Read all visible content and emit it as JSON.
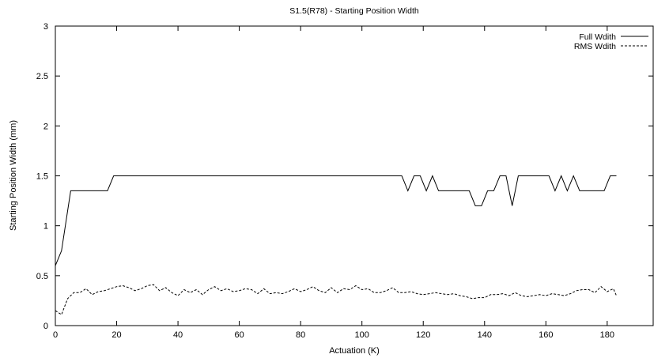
{
  "chart_data": {
    "type": "line",
    "title": "S1.5(R78) - Starting Position Width",
    "xlabel": "Actuation (K)",
    "ylabel": "Starting Position Width (mm)",
    "xlim": [
      0,
      195
    ],
    "ylim": [
      0,
      3
    ],
    "xticks": [
      0,
      20,
      40,
      60,
      80,
      100,
      120,
      140,
      160,
      180
    ],
    "yticks": [
      0,
      0.5,
      1,
      1.5,
      2,
      2.5,
      3
    ],
    "ytick_labels": [
      "0",
      "0.5",
      "1",
      "1.5",
      "2",
      "2.5",
      "3"
    ],
    "grid": false,
    "legend_position": "top-right",
    "series": [
      {
        "name": "Full Wdith",
        "style": "solid",
        "color": "#000000",
        "x": [
          0,
          2,
          5,
          10,
          15,
          17,
          19,
          40,
          60,
          80,
          100,
          113,
          115,
          117,
          119,
          121,
          123,
          125,
          130,
          135,
          137,
          139,
          141,
          143,
          145,
          147,
          149,
          151,
          155,
          158,
          161,
          163,
          165,
          167,
          169,
          171,
          175,
          179,
          181,
          183
        ],
        "y": [
          0.6,
          0.75,
          1.35,
          1.35,
          1.35,
          1.35,
          1.5,
          1.5,
          1.5,
          1.5,
          1.5,
          1.5,
          1.35,
          1.5,
          1.5,
          1.35,
          1.5,
          1.35,
          1.35,
          1.35,
          1.2,
          1.2,
          1.35,
          1.35,
          1.5,
          1.5,
          1.2,
          1.5,
          1.5,
          1.5,
          1.5,
          1.35,
          1.5,
          1.35,
          1.5,
          1.35,
          1.35,
          1.35,
          1.5,
          1.5
        ]
      },
      {
        "name": "RMS Wdith",
        "style": "dashed",
        "color": "#000000",
        "x": [
          0,
          2,
          4,
          6,
          8,
          10,
          12,
          14,
          16,
          18,
          20,
          22,
          24,
          26,
          28,
          30,
          32,
          34,
          36,
          38,
          40,
          42,
          44,
          46,
          48,
          50,
          52,
          54,
          56,
          58,
          60,
          62,
          64,
          66,
          68,
          70,
          72,
          74,
          76,
          78,
          80,
          82,
          84,
          86,
          88,
          90,
          92,
          94,
          96,
          98,
          100,
          102,
          104,
          106,
          108,
          110,
          112,
          114,
          116,
          118,
          120,
          122,
          124,
          126,
          128,
          130,
          132,
          134,
          136,
          138,
          140,
          142,
          144,
          146,
          148,
          150,
          152,
          154,
          156,
          158,
          160,
          162,
          164,
          166,
          168,
          170,
          172,
          174,
          176,
          178,
          180,
          182,
          183
        ],
        "y": [
          0.15,
          0.11,
          0.27,
          0.33,
          0.33,
          0.37,
          0.31,
          0.34,
          0.35,
          0.37,
          0.39,
          0.4,
          0.38,
          0.35,
          0.37,
          0.4,
          0.41,
          0.35,
          0.38,
          0.33,
          0.3,
          0.36,
          0.33,
          0.36,
          0.31,
          0.36,
          0.39,
          0.35,
          0.37,
          0.34,
          0.35,
          0.37,
          0.36,
          0.32,
          0.37,
          0.32,
          0.33,
          0.32,
          0.34,
          0.37,
          0.34,
          0.36,
          0.39,
          0.35,
          0.33,
          0.38,
          0.33,
          0.37,
          0.36,
          0.4,
          0.36,
          0.37,
          0.33,
          0.33,
          0.35,
          0.38,
          0.33,
          0.33,
          0.34,
          0.32,
          0.31,
          0.32,
          0.33,
          0.32,
          0.31,
          0.32,
          0.3,
          0.29,
          0.27,
          0.28,
          0.28,
          0.31,
          0.31,
          0.32,
          0.3,
          0.33,
          0.3,
          0.29,
          0.3,
          0.31,
          0.3,
          0.32,
          0.31,
          0.3,
          0.32,
          0.35,
          0.36,
          0.36,
          0.33,
          0.39,
          0.34,
          0.37,
          0.3
        ]
      }
    ]
  }
}
